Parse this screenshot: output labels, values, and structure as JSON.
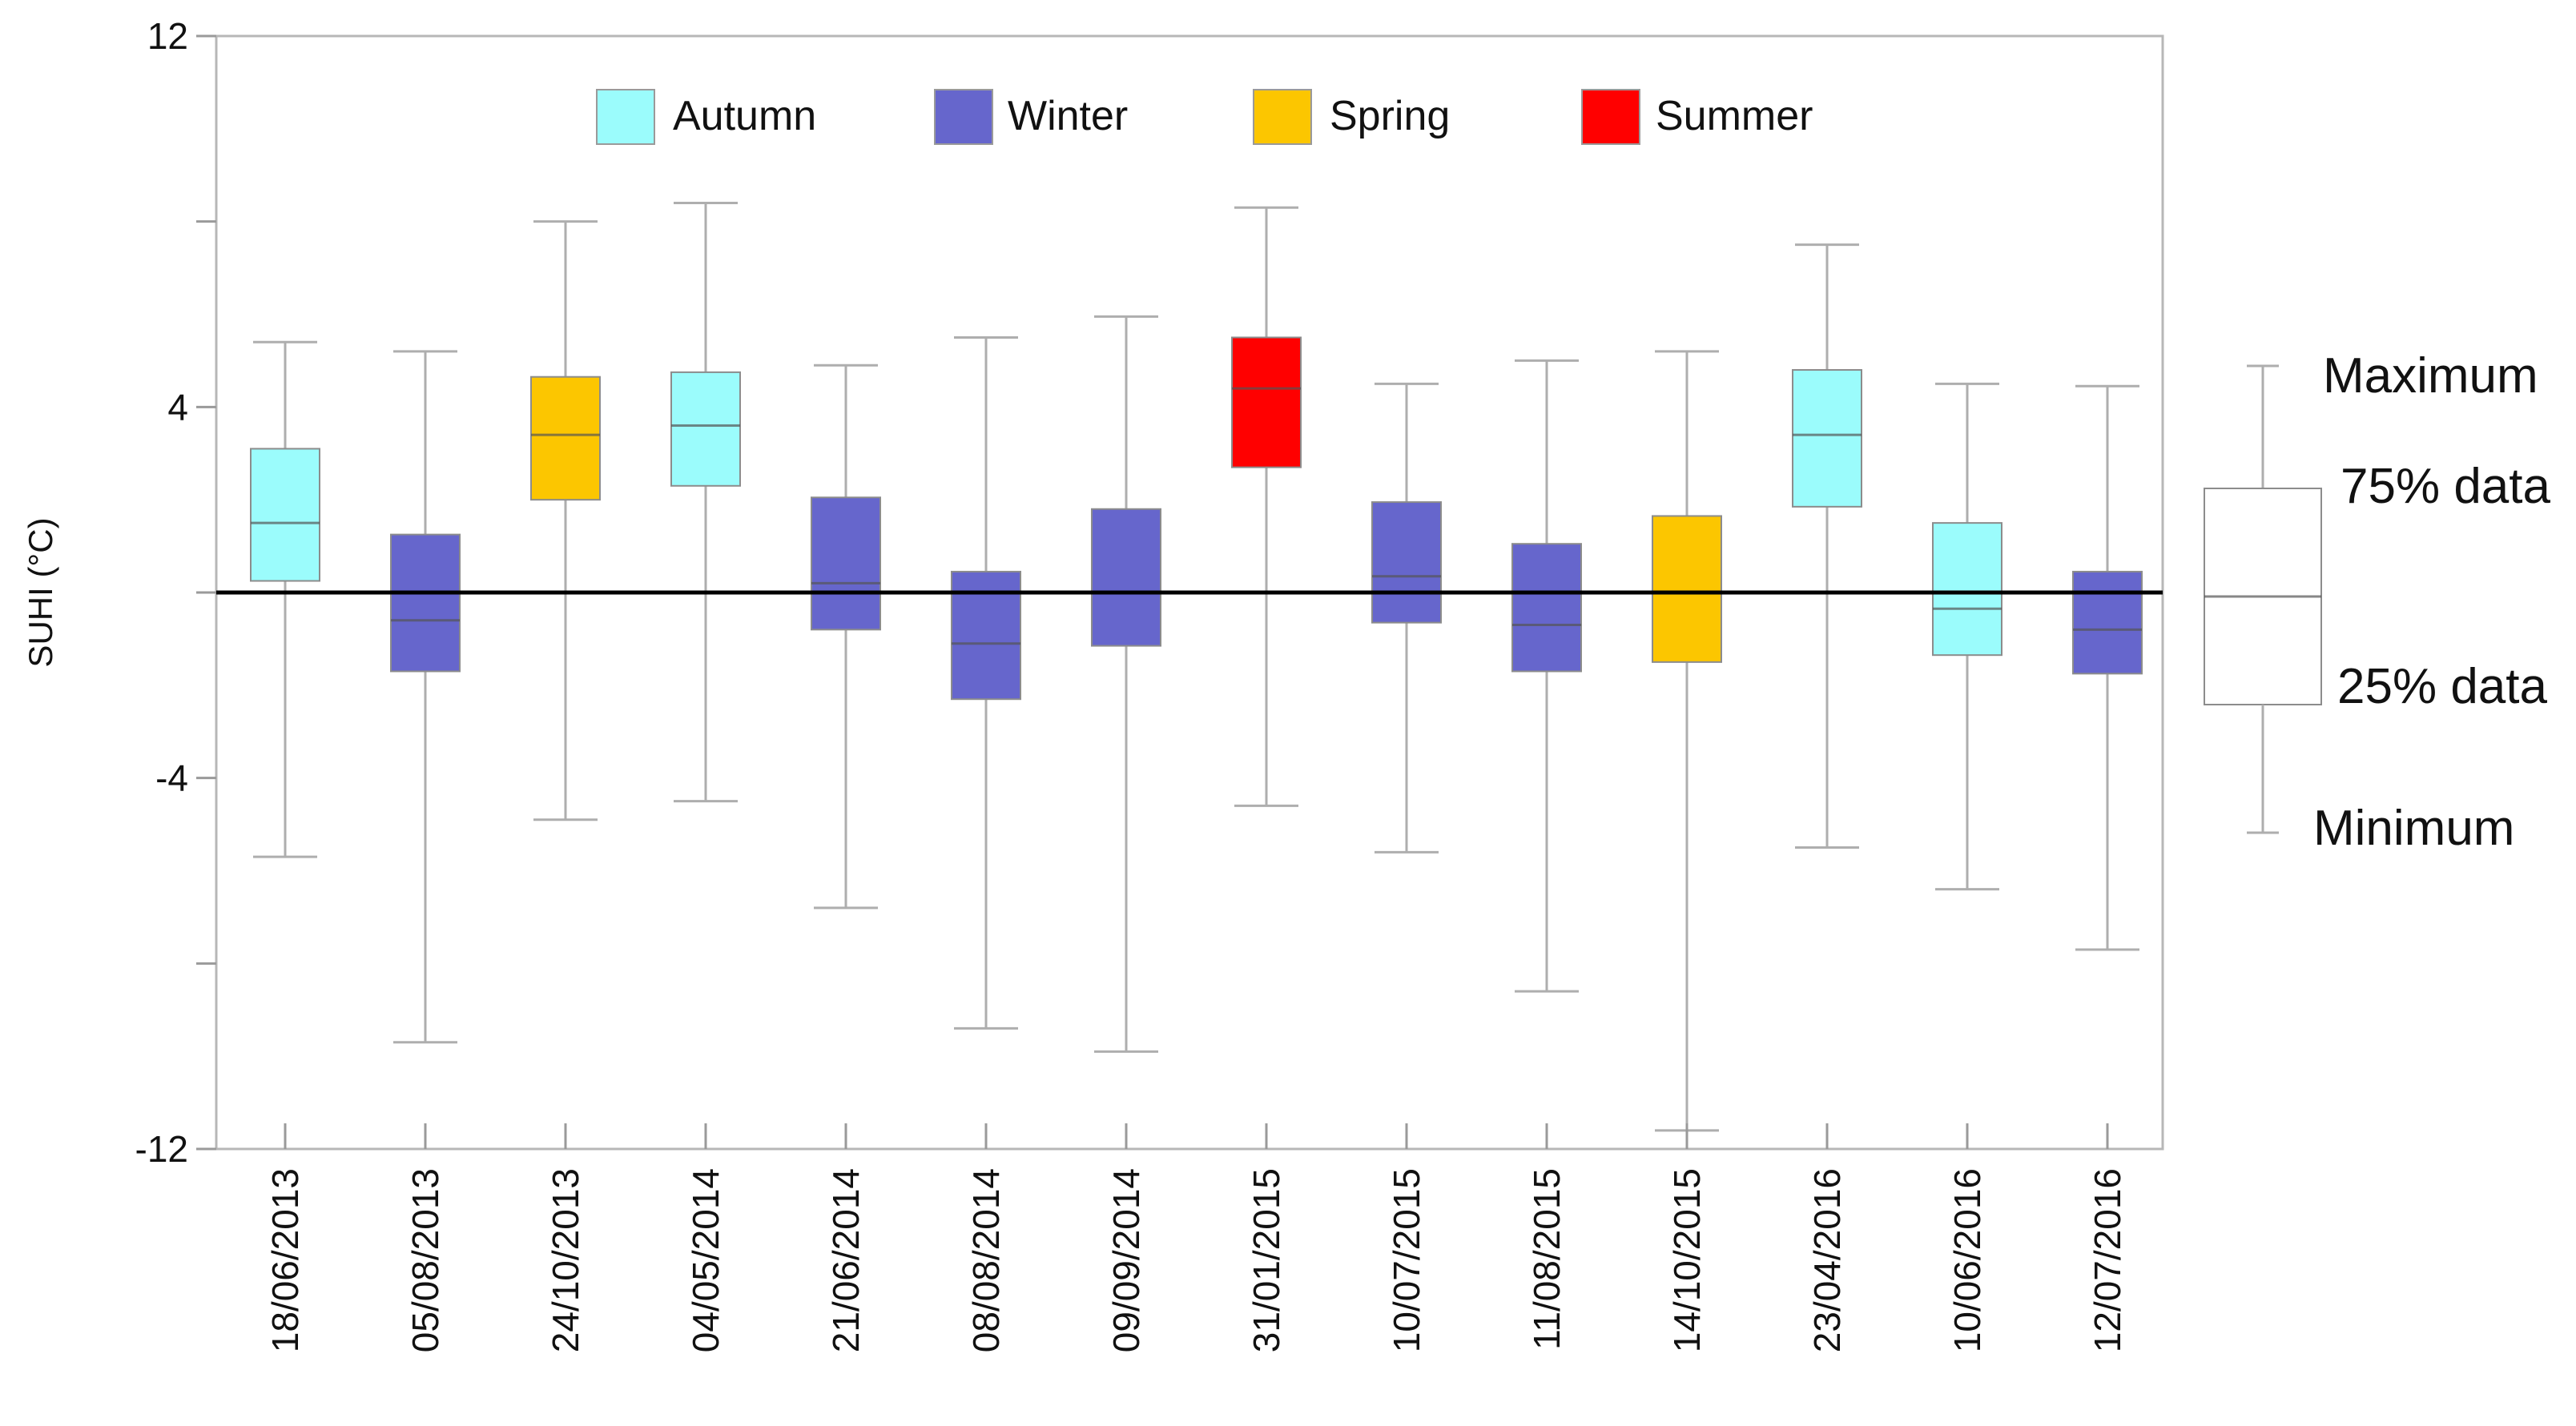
{
  "chart_data": {
    "type": "boxplot",
    "ylabel": "SUHI (°C)",
    "ylim": [
      -12,
      12
    ],
    "yticks": [
      12,
      4,
      -4,
      -12
    ],
    "yticks_minor": [
      8,
      0,
      -8
    ],
    "reference_line": 0,
    "legend": [
      {
        "season": "Autumn",
        "label": "Autumn",
        "color": "#9bfcfc"
      },
      {
        "season": "Winter",
        "label": "Winter",
        "color": "#6666cc"
      },
      {
        "season": "Spring",
        "label": "Spring",
        "color": "#fcc600"
      },
      {
        "season": "Summer",
        "label": "Summer",
        "color": "#ff0000"
      }
    ],
    "key": {
      "maximum": "Maximum",
      "q3": "75% data",
      "q1": "25% data",
      "minimum": "Minimum"
    },
    "boxes": [
      {
        "date": "18/06/2013",
        "season": "Autumn",
        "min": -5.7,
        "q1": 0.25,
        "median": 1.5,
        "q3": 3.1,
        "max": 5.4
      },
      {
        "date": "05/08/2013",
        "season": "Winter",
        "min": -9.7,
        "q1": -1.7,
        "median": -0.6,
        "q3": 1.25,
        "max": 5.2
      },
      {
        "date": "24/10/2013",
        "season": "Spring",
        "min": -4.9,
        "q1": 2.0,
        "median": 3.4,
        "q3": 4.65,
        "max": 8.0
      },
      {
        "date": "04/05/2014",
        "season": "Autumn",
        "min": -4.5,
        "q1": 2.3,
        "median": 3.6,
        "q3": 4.75,
        "max": 8.4
      },
      {
        "date": "21/06/2014",
        "season": "Winter",
        "min": -6.8,
        "q1": -0.8,
        "median": 0.2,
        "q3": 2.05,
        "max": 4.9
      },
      {
        "date": "08/08/2014",
        "season": "Winter",
        "min": -9.4,
        "q1": -2.3,
        "median": -1.1,
        "q3": 0.45,
        "max": 5.5
      },
      {
        "date": "09/09/2014",
        "season": "Winter",
        "min": -9.9,
        "q1": -1.15,
        "median": 0.0,
        "q3": 1.8,
        "max": 5.95
      },
      {
        "date": "31/01/2015",
        "season": "Summer",
        "min": -4.6,
        "q1": 2.7,
        "median": 4.4,
        "q3": 5.5,
        "max": 8.3
      },
      {
        "date": "10/07/2015",
        "season": "Winter",
        "min": -5.6,
        "q1": -0.65,
        "median": 0.35,
        "q3": 1.95,
        "max": 4.5
      },
      {
        "date": "11/08/2015",
        "season": "Winter",
        "min": -8.6,
        "q1": -1.7,
        "median": -0.7,
        "q3": 1.05,
        "max": 5.0
      },
      {
        "date": "14/10/2015",
        "season": "Spring",
        "min": -11.6,
        "q1": -1.5,
        "median": 0.0,
        "q3": 1.65,
        "max": 5.2
      },
      {
        "date": "23/04/2016",
        "season": "Autumn",
        "min": -5.5,
        "q1": 1.85,
        "median": 3.4,
        "q3": 4.8,
        "max": 7.5
      },
      {
        "date": "10/06/2016",
        "season": "Autumn",
        "min": -6.4,
        "q1": -1.35,
        "median": -0.35,
        "q3": 1.5,
        "max": 4.5
      },
      {
        "date": "12/07/2016",
        "season": "Winter",
        "min": -7.7,
        "q1": -1.75,
        "median": -0.8,
        "q3": 0.45,
        "max": 4.45
      }
    ]
  }
}
